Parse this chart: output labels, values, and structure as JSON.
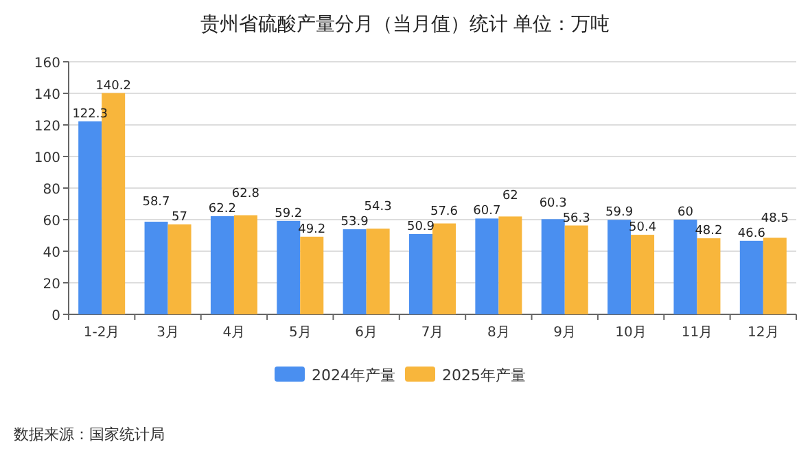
{
  "chart_data": {
    "type": "bar",
    "title": "贵州省硫酸产量分月（当月值）统计 单位：万吨",
    "categories": [
      "1-2月",
      "3月",
      "4月",
      "5月",
      "6月",
      "7月",
      "8月",
      "9月",
      "10月",
      "11月",
      "12月"
    ],
    "series": [
      {
        "name": "2024年产量",
        "color": "#4a8ff0",
        "values": [
          122.3,
          58.7,
          62.2,
          59.2,
          53.9,
          50.9,
          60.7,
          60.3,
          59.9,
          60,
          46.6
        ]
      },
      {
        "name": "2025年产量",
        "color": "#f8b63c",
        "values": [
          140.2,
          57,
          62.8,
          49.2,
          54.3,
          57.6,
          62,
          56.3,
          50.4,
          48.2,
          48.5
        ]
      }
    ],
    "ylim": [
      0,
      160
    ],
    "yticks": [
      0,
      20,
      40,
      60,
      80,
      100,
      120,
      140,
      160
    ],
    "grid": "y",
    "legend": "bottom",
    "data_labels": true,
    "annotations": [
      "数据来源：国家统计局"
    ]
  }
}
